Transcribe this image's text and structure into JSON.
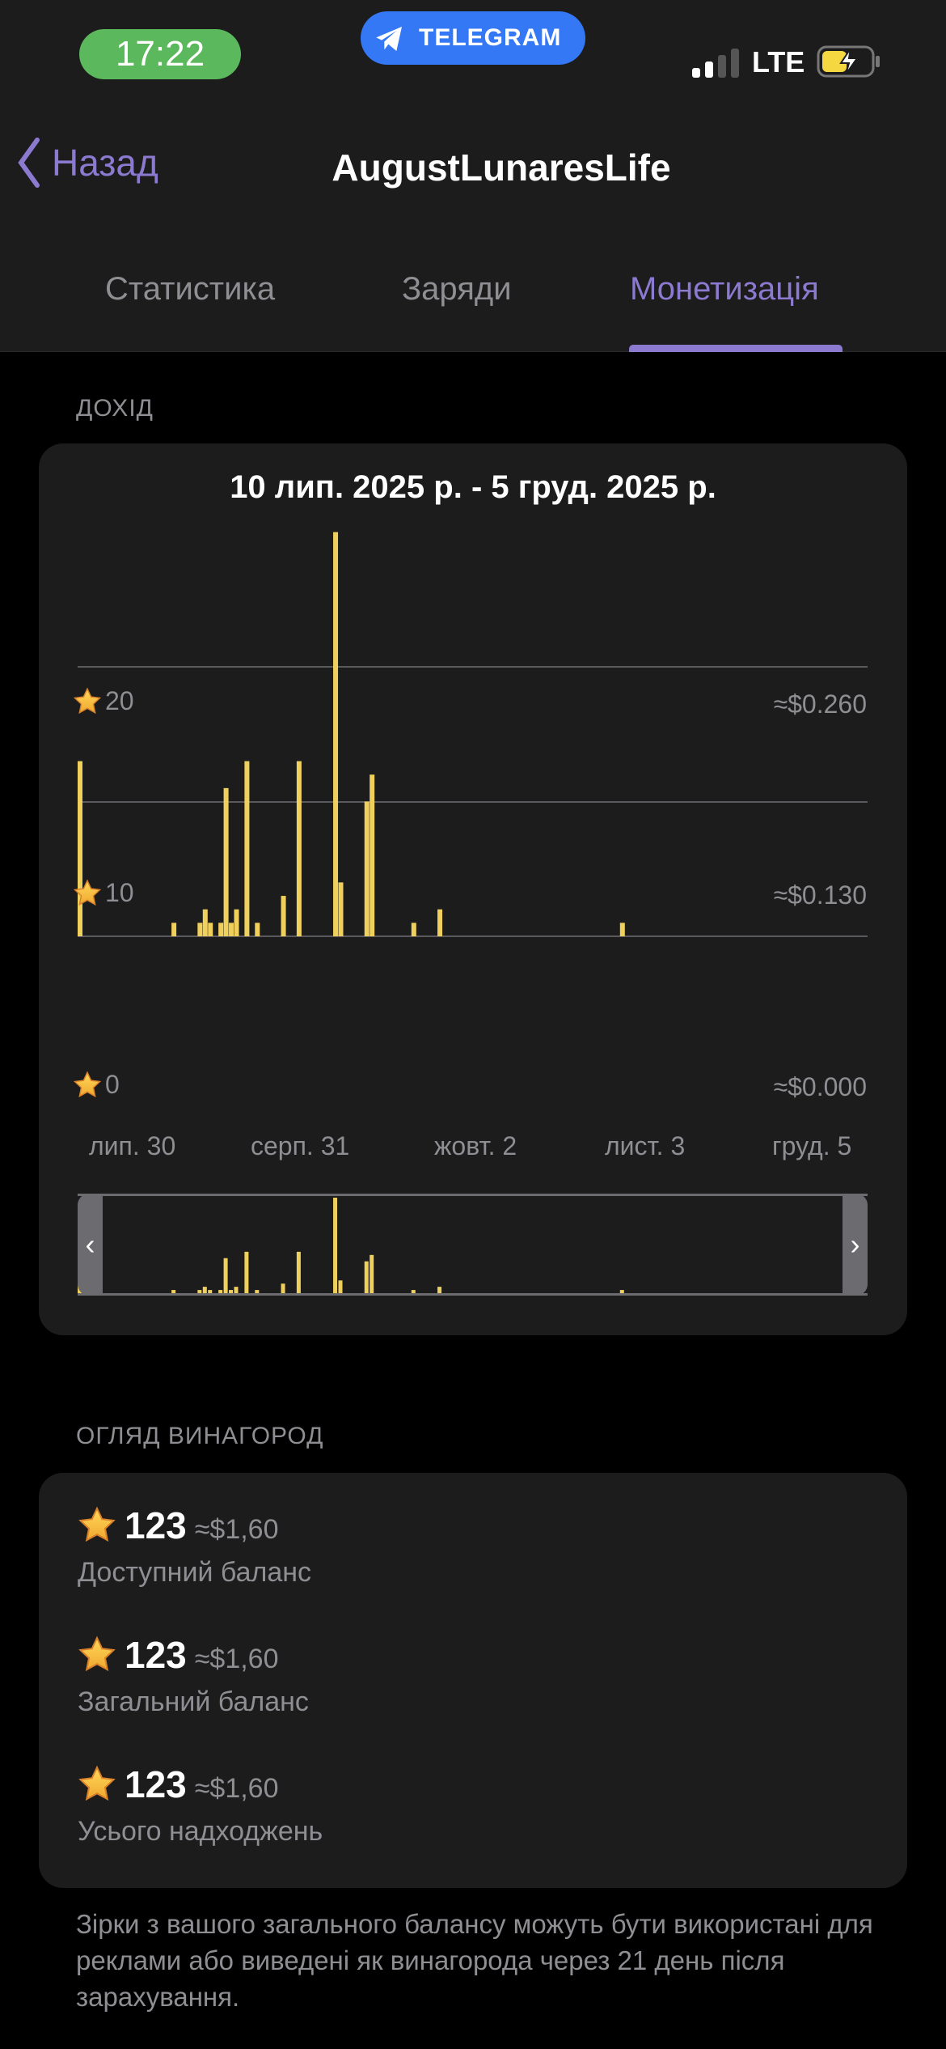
{
  "status_bar": {
    "time": "17:22",
    "app_badge": "TELEGRAM",
    "network": "LTE",
    "signal_bars": 2,
    "battery_charging": true
  },
  "nav": {
    "back_label": "Назад",
    "title": "AugustLunaresLife"
  },
  "tabs": [
    {
      "label": "Статистика",
      "active": false
    },
    {
      "label": "Заряди",
      "active": false
    },
    {
      "label": "Монетизація",
      "active": true
    }
  ],
  "revenue": {
    "section_title": "ДОХІД",
    "range_title": "10 лип. 2025 р. - 5 груд. 2025 р.",
    "y_left_ticks": [
      "0",
      "10",
      "20"
    ],
    "y_right_ticks": [
      "≈$0.000",
      "≈$0.130",
      "≈$0.260"
    ],
    "x_ticks": [
      "лип. 30",
      "серп. 31",
      "жовт. 2",
      "лист. 3",
      "груд. 5"
    ]
  },
  "chart_data": {
    "type": "bar",
    "title": "10 лип. 2025 р. - 5 груд. 2025 р.",
    "x_range": [
      "2025-07-10",
      "2025-12-05"
    ],
    "x": [
      "2025-07-10",
      "2025-07-28",
      "2025-08-02",
      "2025-08-03",
      "2025-08-04",
      "2025-08-06",
      "2025-08-07",
      "2025-08-08",
      "2025-08-09",
      "2025-08-11",
      "2025-08-13",
      "2025-08-18",
      "2025-08-21",
      "2025-08-28",
      "2025-08-29",
      "2025-09-03",
      "2025-09-04",
      "2025-09-12",
      "2025-09-17",
      "2025-10-22"
    ],
    "values": [
      13,
      1,
      1,
      2,
      1,
      1,
      11,
      1,
      2,
      13,
      1,
      3,
      13,
      30,
      4,
      10,
      12,
      1,
      2,
      1
    ],
    "ylim": [
      0,
      30
    ],
    "y_ticks": [
      0,
      10,
      20
    ],
    "y_right_ticks": [
      "≈$0.000",
      "≈$0.130",
      "≈$0.260"
    ],
    "x_tick_labels": [
      "лип. 30",
      "серп. 31",
      "жовт. 2",
      "лист. 3",
      "груд. 5"
    ],
    "bar_color": "#f0d05c",
    "grid": true,
    "has_navigator": true
  },
  "rewards": {
    "section_title": "ОГЛЯД ВИНАГОРОД",
    "rows": [
      {
        "stars": "123",
        "usd": "≈$1,60",
        "label": "Доступний баланс"
      },
      {
        "stars": "123",
        "usd": "≈$1,60",
        "label": "Загальний баланс"
      },
      {
        "stars": "123",
        "usd": "≈$1,60",
        "label": "Усього надходжень"
      }
    ],
    "note": "Зірки з вашого загального балансу можуть бути використані для реклами або виведені як винагорода через 21 день після зарахування."
  },
  "colors": {
    "accent": "#8c7ad0",
    "bar": "#f0d05c",
    "card": "#1c1c1d",
    "background": "#000000"
  }
}
